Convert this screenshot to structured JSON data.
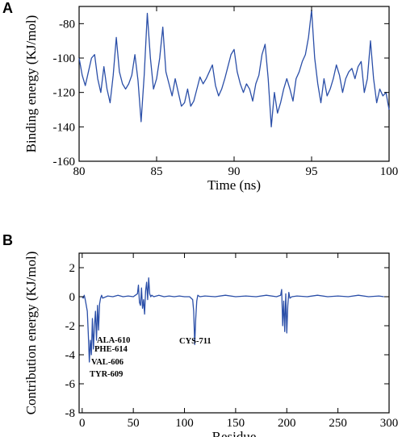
{
  "chart_data": [
    {
      "panel": "A",
      "type": "line",
      "title": "",
      "xlabel": "Time (ns)",
      "ylabel": "Binding energy (KJ/mol)",
      "xlim": [
        80,
        100
      ],
      "ylim": [
        -160,
        -70
      ],
      "xticks": [
        80,
        85,
        90,
        95,
        100
      ],
      "yticks": [
        -160,
        -140,
        -120,
        -100,
        -80
      ],
      "grid": false,
      "color": "#2b4fa8",
      "series": [
        {
          "x": [
            80.0,
            80.2,
            80.4,
            80.6,
            80.8,
            81.0,
            81.2,
            81.4,
            81.6,
            81.8,
            82.0,
            82.2,
            82.4,
            82.6,
            82.8,
            83.0,
            83.2,
            83.4,
            83.6,
            83.8,
            84.0,
            84.2,
            84.4,
            84.6,
            84.8,
            85.0,
            85.2,
            85.4,
            85.6,
            85.8,
            86.0,
            86.2,
            86.4,
            86.6,
            86.8,
            87.0,
            87.2,
            87.4,
            87.6,
            87.8,
            88.0,
            88.2,
            88.4,
            88.6,
            88.8,
            89.0,
            89.2,
            89.4,
            89.6,
            89.8,
            90.0,
            90.2,
            90.4,
            90.6,
            90.8,
            91.0,
            91.2,
            91.4,
            91.6,
            91.8,
            92.0,
            92.2,
            92.4,
            92.6,
            92.8,
            93.0,
            93.2,
            93.4,
            93.6,
            93.8,
            94.0,
            94.2,
            94.4,
            94.6,
            94.8,
            95.0,
            95.2,
            95.4,
            95.6,
            95.8,
            96.0,
            96.2,
            96.4,
            96.6,
            96.8,
            97.0,
            97.2,
            97.4,
            97.6,
            97.8,
            98.0,
            98.2,
            98.4,
            98.6,
            98.8,
            99.0,
            99.2,
            99.4,
            99.6,
            99.8,
            100.0
          ],
          "y": [
            -100,
            -110,
            -116,
            -108,
            -100,
            -98,
            -112,
            -120,
            -105,
            -118,
            -126,
            -110,
            -88,
            -108,
            -115,
            -118,
            -115,
            -110,
            -98,
            -113,
            -137,
            -110,
            -74,
            -100,
            -118,
            -112,
            -100,
            -82,
            -108,
            -115,
            -122,
            -112,
            -120,
            -128,
            -126,
            -118,
            -128,
            -125,
            -118,
            -111,
            -115,
            -112,
            -108,
            -104,
            -116,
            -122,
            -118,
            -112,
            -105,
            -98,
            -95,
            -108,
            -115,
            -120,
            -115,
            -118,
            -125,
            -115,
            -110,
            -98,
            -92,
            -112,
            -140,
            -120,
            -132,
            -126,
            -118,
            -112,
            -118,
            -125,
            -112,
            -108,
            -102,
            -98,
            -88,
            -72,
            -100,
            -115,
            -126,
            -112,
            -122,
            -118,
            -112,
            -104,
            -110,
            -120,
            -112,
            -108,
            -106,
            -112,
            -105,
            -102,
            -120,
            -112,
            -90,
            -112,
            -126,
            -118,
            -122,
            -120,
            -130
          ]
        }
      ]
    },
    {
      "panel": "B",
      "type": "line",
      "title": "",
      "xlabel": "Residue",
      "ylabel": "Contribution energy (KJ/mol)",
      "xlim": [
        -3,
        300
      ],
      "ylim": [
        -8,
        3
      ],
      "xticks": [
        0,
        50,
        100,
        150,
        200,
        250,
        300
      ],
      "yticks": [
        -8,
        -6,
        -4,
        -2,
        0,
        2
      ],
      "grid": false,
      "color": "#2b4fa8",
      "annotations": [
        "ALA-610",
        "PHE-614",
        "VAL-606",
        "TYR-609",
        "CYS-711"
      ],
      "series": [
        {
          "x": [
            0,
            1,
            2,
            3,
            4,
            5,
            6,
            7,
            8,
            9,
            10,
            11,
            12,
            13,
            14,
            15,
            16,
            17,
            18,
            19,
            20,
            25,
            30,
            35,
            40,
            45,
            50,
            52,
            54,
            55,
            56,
            57,
            58,
            59,
            60,
            61,
            62,
            63,
            64,
            65,
            66,
            67,
            68,
            70,
            75,
            80,
            85,
            90,
            95,
            100,
            105,
            108,
            109,
            110,
            111,
            112,
            113,
            115,
            120,
            130,
            140,
            150,
            160,
            170,
            180,
            190,
            194,
            195,
            196,
            197,
            198,
            199,
            200,
            201,
            202,
            203,
            205,
            210,
            220,
            230,
            240,
            250,
            260,
            270,
            280,
            290,
            295
          ],
          "y": [
            0,
            -0.1,
            0.1,
            -0.2,
            -0.6,
            -1.0,
            -2.6,
            -4.5,
            -3.0,
            -4.0,
            -1.5,
            -3.6,
            -2.0,
            -1.0,
            -3.0,
            -0.6,
            -2.3,
            -0.5,
            -0.1,
            0.1,
            -0.1,
            0.05,
            0,
            0.1,
            0,
            0.05,
            0,
            0.1,
            0.2,
            0.8,
            -0.4,
            -0.6,
            0.6,
            -0.8,
            -0.2,
            -1.2,
            0.4,
            1.0,
            -0.2,
            1.3,
            0.2,
            0,
            0.1,
            0,
            0.1,
            0,
            0.05,
            0,
            0.05,
            0,
            0,
            -0.2,
            -1.0,
            -3.3,
            -1.5,
            -0.3,
            0.1,
            0,
            0.05,
            0,
            0.1,
            0,
            0.05,
            0,
            0.1,
            0,
            0.1,
            0.5,
            -2.0,
            -0.3,
            -2.4,
            0.2,
            -2.5,
            -0.6,
            0.3,
            -0.1,
            0,
            0.05,
            0,
            0.1,
            0,
            0.05,
            0,
            0.1,
            0,
            0.05,
            0
          ]
        }
      ]
    }
  ]
}
